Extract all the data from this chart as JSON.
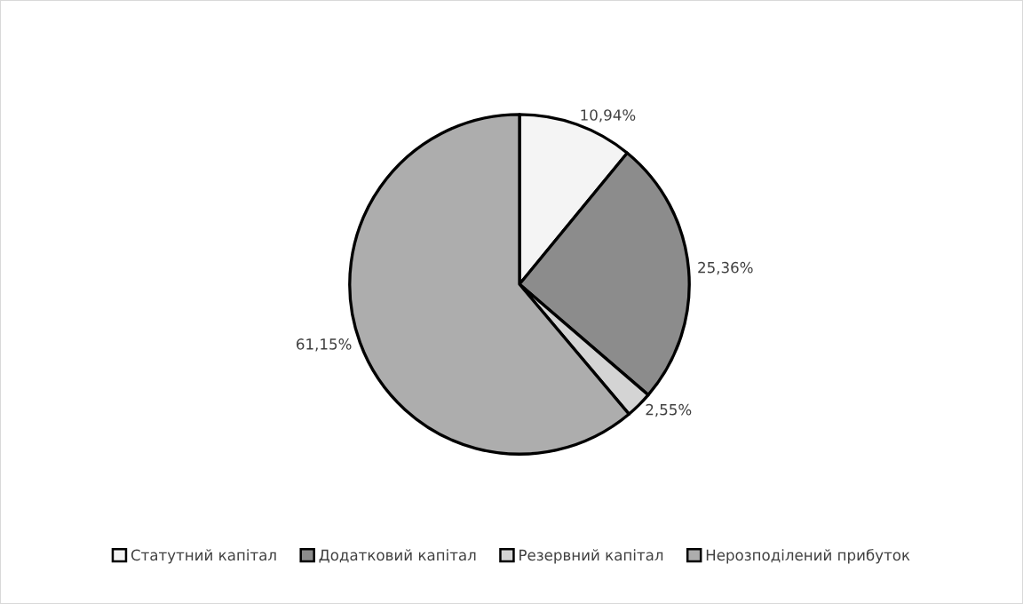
{
  "chart_data": {
    "type": "pie",
    "categories": [
      "Статутний капітал",
      "Додатковий капітал",
      "Резервний капітал",
      "Нерозподілений прибуток"
    ],
    "values": [
      10.94,
      25.36,
      2.55,
      61.15
    ],
    "colors": [
      "#f4f4f4",
      "#8c8c8c",
      "#d4d4d4",
      "#adadad"
    ],
    "value_labels": [
      "10,94%",
      "25,36%",
      "2,55%",
      "61,15%"
    ],
    "legend": "bottom"
  }
}
